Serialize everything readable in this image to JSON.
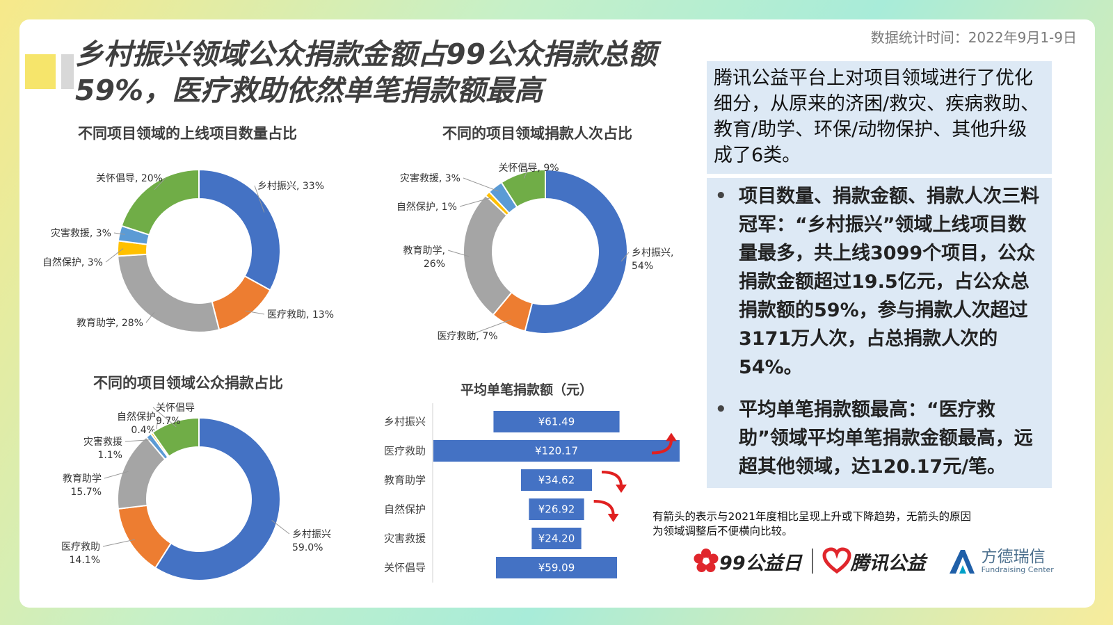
{
  "header": {
    "title": "乡村振兴领域公众捐款金额占99公众捐款总额59%，医疗救助依然单笔捐款额最高",
    "stat_time": "数据统计时间：2022年9月1-9日"
  },
  "info": {
    "top_text": "腾讯公益平台上对项目领域进行了优化细分，从原来的济困/救灾、疾病救助、教育/助学、环保/动物保护、其他升级成了6类。",
    "bullets": [
      "项目数量、捐款金额、捐款人次三料冠军：“乡村振兴”领域上线项目数量最多，共上线3099个项目，公众捐款金额超过19.5亿元，占公众总捐款额的59%，参与捐款人次超过3171万人次，占总捐款人次的54%。",
      "平均单笔捐款额最高：“医疗救助”领域平均单笔捐款金额最高，远超其他领域，达120.17元/笔。"
    ]
  },
  "note": "有箭头的表示与2021年度相比呈现上升或下降趋势，无箭头的原因为领域调整后不便横向比较。",
  "footer": {
    "logo1": "99公益日",
    "logo2": "腾讯公益",
    "logo3_name": "方德瑞信",
    "logo3_sub": "Fundraising Center"
  },
  "colors": {
    "blue": "#4472c4",
    "orange": "#ed7d31",
    "gray": "#a5a5a5",
    "yellow": "#ffc000",
    "lightblue": "#5b9bd5",
    "green": "#70ad47",
    "arrow": "#e02020"
  },
  "chart_data": [
    {
      "type": "pie",
      "title": "不同项目领域的上线项目数量占比",
      "slices": [
        {
          "name": "乡村振兴",
          "value": 33,
          "label": "乡村振兴, 33%"
        },
        {
          "name": "医疗救助",
          "value": 13,
          "label": "医疗救助, 13%"
        },
        {
          "name": "教育助学",
          "value": 28,
          "label": "教育助学, 28%"
        },
        {
          "name": "自然保护",
          "value": 3,
          "label": "自然保护, 3%"
        },
        {
          "name": "灾害救援",
          "value": 3,
          "label": "灾害救援, 3%"
        },
        {
          "name": "关怀倡导",
          "value": 20,
          "label": "关怀倡导, 20%"
        }
      ]
    },
    {
      "type": "pie",
      "title": "不同的项目领域捐款人次占比",
      "slices": [
        {
          "name": "乡村振兴",
          "value": 54,
          "label": "乡村振兴,|54%"
        },
        {
          "name": "医疗救助",
          "value": 7,
          "label": "医疗救助, 7%"
        },
        {
          "name": "教育助学",
          "value": 26,
          "label": "教育助学,|26%"
        },
        {
          "name": "自然保护",
          "value": 1,
          "label": "自然保护, 1%"
        },
        {
          "name": "灾害救援",
          "value": 3,
          "label": "灾害救援, 3%"
        },
        {
          "name": "关怀倡导",
          "value": 9,
          "label": "关怀倡导, 9%"
        }
      ]
    },
    {
      "type": "pie",
      "title": "不同的项目领域公众捐款占比",
      "slices": [
        {
          "name": "乡村振兴",
          "value": 59.0,
          "label": "乡村振兴|59.0%"
        },
        {
          "name": "医疗救助",
          "value": 14.1,
          "label": "医疗救助|14.1%"
        },
        {
          "name": "教育助学",
          "value": 15.7,
          "label": "教育助学|15.7%"
        },
        {
          "name": "灾害救援",
          "value": 1.1,
          "label": "灾害救援|1.1%"
        },
        {
          "name": "自然保护",
          "value": 0.4,
          "label": "自然保护|0.4%"
        },
        {
          "name": "关怀倡导",
          "value": 9.7,
          "label": "关怀倡导|9.7%"
        }
      ]
    },
    {
      "type": "bar",
      "orientation": "horizontal",
      "title": "平均单笔捐款额（元）",
      "categories": [
        "乡村振兴",
        "医疗救助",
        "教育助学",
        "自然保护",
        "灾害救援",
        "关怀倡导"
      ],
      "values": [
        61.49,
        120.17,
        34.62,
        26.92,
        24.2,
        59.09
      ],
      "labels": [
        "¥61.49",
        "¥120.17",
        "¥34.62",
        "¥26.92",
        "¥24.20",
        "¥59.09"
      ],
      "trend": [
        "",
        "up",
        "down",
        "down",
        "",
        ""
      ],
      "xlim": [
        0,
        120.17
      ]
    }
  ]
}
